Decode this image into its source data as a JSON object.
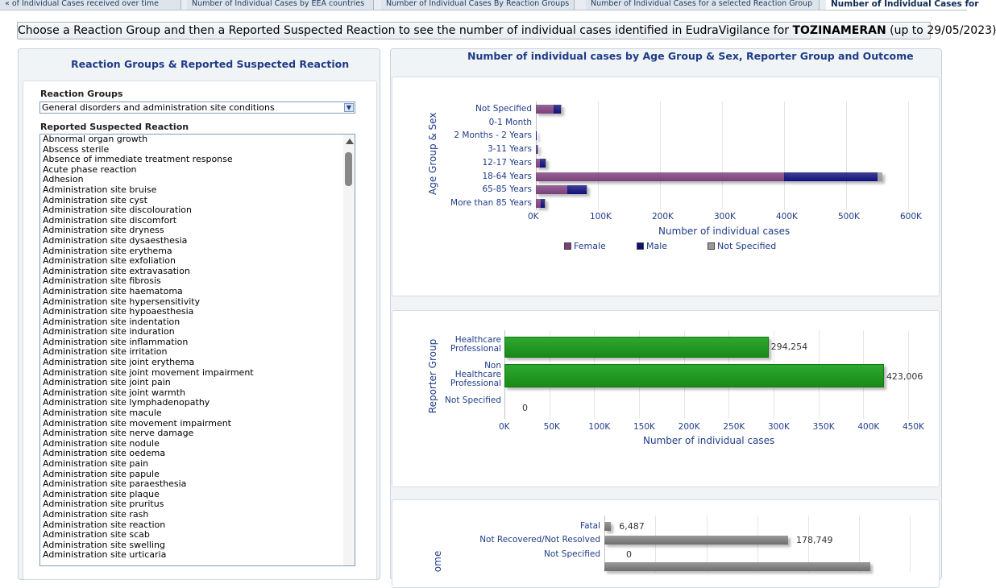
{
  "tabs": [
    {
      "label": "of Individual Cases received over time"
    },
    {
      "label": "Number of Individual Cases by EEA countries"
    },
    {
      "label": "Number of Individual Cases By Reaction Groups"
    },
    {
      "label": "Number of Individual Cases for a selected Reaction Group"
    },
    {
      "label": "Number of Individual Cases for"
    }
  ],
  "header": {
    "prefix": "Choose a Reaction Group and then a Reported Suspected Reaction to see the number of individual cases identified in EudraVigilance for ",
    "product": "TOZINAMERAN",
    "suffix": " (up to 29/05/2023)"
  },
  "left_panel": {
    "title": "Reaction Groups & Reported Suspected Reaction",
    "group_label": "Reaction Groups",
    "group_value": "General disorders and administration site conditions",
    "reaction_label": "Reported Suspected Reaction",
    "reactions": [
      "Abnormal organ growth",
      "Abscess sterile",
      "Absence of immediate treatment response",
      "Acute phase reaction",
      "Adhesion",
      "Administration site bruise",
      "Administration site cyst",
      "Administration site discolouration",
      "Administration site discomfort",
      "Administration site dryness",
      "Administration site dysaesthesia",
      "Administration site erythema",
      "Administration site exfoliation",
      "Administration site extravasation",
      "Administration site fibrosis",
      "Administration site haematoma",
      "Administration site hypersensitivity",
      "Administration site hypoaesthesia",
      "Administration site indentation",
      "Administration site induration",
      "Administration site inflammation",
      "Administration site irritation",
      "Administration site joint erythema",
      "Administration site joint movement impairment",
      "Administration site joint pain",
      "Administration site joint warmth",
      "Administration site lymphadenopathy",
      "Administration site macule",
      "Administration site movement impairment",
      "Administration site nerve damage",
      "Administration site nodule",
      "Administration site oedema",
      "Administration site pain",
      "Administration site papule",
      "Administration site paraesthesia",
      "Administration site plaque",
      "Administration site pruritus",
      "Administration site rash",
      "Administration site reaction",
      "Administration site scab",
      "Administration site swelling",
      "Administration site urticaria"
    ]
  },
  "right_panel": {
    "title": "Number of individual cases by Age Group & Sex, Reporter Group and Outcome"
  },
  "chart_data": [
    {
      "type": "bar",
      "orientation": "horizontal",
      "stacked": true,
      "ylabel": "Age Group & Sex",
      "xlabel": "Number of individual cases",
      "categories": [
        "Not Specified",
        "0-1 Month",
        "2 Months - 2 Years",
        "3-11 Years",
        "12-17 Years",
        "18-64 Years",
        "65-85 Years",
        "More than 85 Years"
      ],
      "series": [
        {
          "name": "Female",
          "color": "#7b3f7b",
          "values": [
            28000,
            0,
            500,
            1500,
            7000,
            400000,
            50000,
            8000
          ]
        },
        {
          "name": "Male",
          "color": "#10107a",
          "values": [
            12000,
            0,
            300,
            1200,
            8000,
            150000,
            32000,
            6000
          ]
        },
        {
          "name": "Not Specified",
          "color": "#9a9a9a",
          "values": [
            1000,
            0,
            0,
            100,
            300,
            8000,
            1000,
            200
          ]
        }
      ],
      "xlim": [
        0,
        600000
      ],
      "xticks": [
        "0K",
        "100K",
        "200K",
        "300K",
        "400K",
        "500K",
        "600K"
      ],
      "legend_position": "bottom",
      "grid": true
    },
    {
      "type": "bar",
      "orientation": "horizontal",
      "ylabel": "Reporter Group",
      "xlabel": "Number of individual cases",
      "categories": [
        "Healthcare Professional",
        "Non Healthcare Professional",
        "Not Specified"
      ],
      "values": [
        294254,
        423006,
        0
      ],
      "data_labels": [
        "294,254",
        "423,006",
        "0"
      ],
      "color": "#1f9a1f",
      "xlim": [
        0,
        450000
      ],
      "xticks": [
        "0K",
        "50K",
        "100K",
        "150K",
        "200K",
        "250K",
        "300K",
        "350K",
        "400K",
        "450K"
      ],
      "grid": true
    },
    {
      "type": "bar",
      "orientation": "horizontal",
      "ylabel": "ome",
      "categories": [
        "Fatal",
        "Not Recovered/Not Resolved",
        "Not Specified"
      ],
      "values": [
        6487,
        178749,
        0
      ],
      "data_labels": [
        "6,487",
        "178,749",
        "0"
      ],
      "color": "#7a7a7a",
      "grid": true
    }
  ]
}
